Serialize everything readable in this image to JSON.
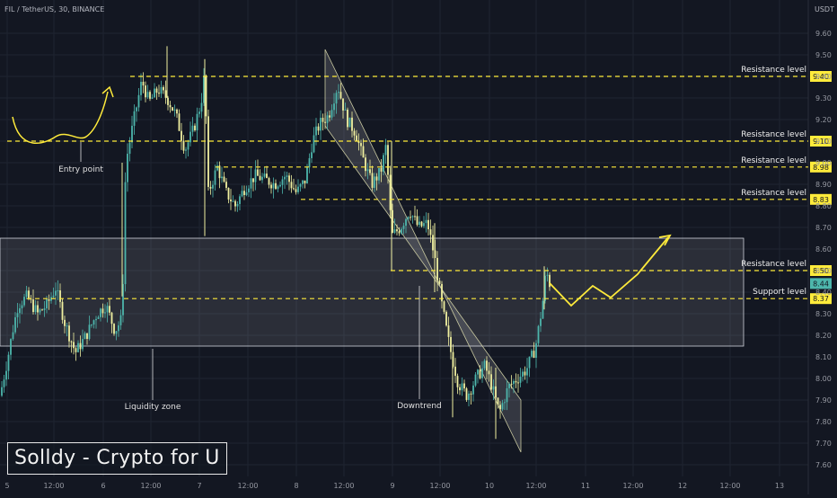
{
  "header": {
    "symbol_label": "FIL / TetherUS, 30, BINANCE",
    "currency_label": "USDT"
  },
  "colors": {
    "background": "#131722",
    "grid": "#1f2431",
    "up_candle": "#4db6ac",
    "down_candle": "#f0f0a0",
    "annotation": "#ffeb3b",
    "zone_fill": "rgba(255,255,255,0.10)"
  },
  "chart_data": {
    "type": "candlestick",
    "ylim": [
      7.56,
      9.72
    ],
    "y_ticks": [
      "9.60",
      "9.50",
      "9.40",
      "9.30",
      "9.20",
      "9.10",
      "9.00",
      "8.90",
      "8.80",
      "8.70",
      "8.60",
      "8.50",
      "8.40",
      "8.30",
      "8.20",
      "8.10",
      "8.00",
      "7.90",
      "7.80",
      "7.70",
      "7.60"
    ],
    "x_ticks": [
      "5",
      "12:00",
      "6",
      "12:00",
      "7",
      "12:00",
      "8",
      "12:00",
      "9",
      "12:00",
      "10",
      "12:00",
      "11",
      "12:00",
      "12",
      "12:00",
      "13"
    ],
    "current_price_label": "8.44",
    "levels": [
      {
        "label": "Resistance level",
        "value": 9.4,
        "price_label": "9.40"
      },
      {
        "label": "",
        "value": 9.1,
        "price_label": "9.10",
        "marker": "Resistance level"
      },
      {
        "label": "Resistance level",
        "value": 8.98,
        "price_label": "8.98"
      },
      {
        "label": "Resistance level",
        "value": 8.83,
        "price_label": "8.83"
      },
      {
        "label": "Resistance level",
        "value": 8.5,
        "price_label": "8.50"
      },
      {
        "label": "Support level",
        "value": 8.37,
        "price_label": "8.37"
      }
    ],
    "liquidity_zone": {
      "top": 8.65,
      "bottom": 8.15,
      "label": "Liquidity zone"
    },
    "annotations": {
      "entry_point": "Entry point",
      "downtrend": "Downtrend"
    },
    "candles_summary": {
      "count": 400,
      "open_first": 7.9,
      "close_last": 8.44,
      "high": 9.54,
      "low": 7.71
    }
  },
  "watermark": {
    "text": "Solldy - Crypto for U"
  }
}
